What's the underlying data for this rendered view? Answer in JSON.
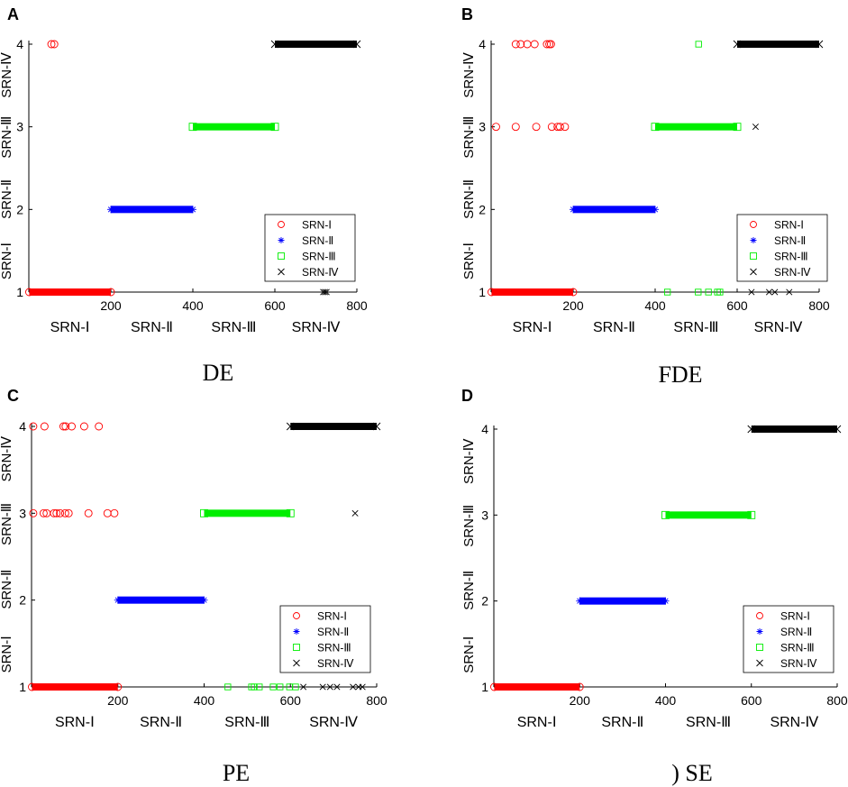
{
  "chart_data": [
    {
      "letter": "A",
      "caption": "DE",
      "type": "scatter",
      "title": "",
      "x_ticks": [
        "200",
        "400",
        "600",
        "800"
      ],
      "y_ticks": [
        "1",
        "2",
        "3",
        "4"
      ],
      "xlim": [
        0,
        800
      ],
      "ylim": [
        1,
        4
      ],
      "y_category_labels": [
        "SRN-Ⅰ",
        "SRN-Ⅱ",
        "SRN-Ⅲ",
        "SRN-Ⅳ"
      ],
      "x_category_labels": [
        "SRN-Ⅰ",
        "SRN-Ⅱ",
        "SRN-Ⅲ",
        "SRN-Ⅳ"
      ],
      "legend": [
        "SRN-Ⅰ",
        "SRN-Ⅱ",
        "SRN-Ⅲ",
        "SRN-Ⅳ"
      ],
      "legend_position": "bottom-right",
      "series": [
        {
          "name": "SRN-Ⅰ",
          "color": "#ff0000",
          "marker": "circle",
          "bands": [
            {
              "from": 1,
              "to": 200,
              "y": 1
            }
          ],
          "points": [
            [
              55,
              4
            ],
            [
              62,
              4
            ]
          ]
        },
        {
          "name": "SRN-Ⅱ",
          "color": "#0000ff",
          "marker": "asterisk",
          "bands": [
            {
              "from": 200,
              "to": 400,
              "y": 2
            }
          ],
          "points": []
        },
        {
          "name": "SRN-Ⅲ",
          "color": "#00ee00",
          "marker": "square",
          "bands": [
            {
              "from": 400,
              "to": 600,
              "y": 3
            }
          ],
          "points": []
        },
        {
          "name": "SRN-Ⅳ",
          "color": "#000000",
          "marker": "x",
          "bands": [
            {
              "from": 600,
              "to": 800,
              "y": 4
            }
          ],
          "points": [
            [
              718,
              1
            ],
            [
              722,
              1
            ],
            [
              726,
              1
            ]
          ]
        }
      ]
    },
    {
      "letter": "B",
      "caption": "FDE",
      "type": "scatter",
      "title": "",
      "x_ticks": [
        "200",
        "400",
        "600",
        "800"
      ],
      "y_ticks": [
        "1",
        "2",
        "3",
        "4"
      ],
      "xlim": [
        0,
        800
      ],
      "ylim": [
        1,
        4
      ],
      "y_category_labels": [
        "SRN-Ⅰ",
        "SRN-Ⅱ",
        "SRN-Ⅲ",
        "SRN-Ⅳ"
      ],
      "x_category_labels": [
        "SRN-Ⅰ",
        "SRN-Ⅱ",
        "SRN-Ⅲ",
        "SRN-Ⅳ"
      ],
      "legend": [
        "SRN-Ⅰ",
        "SRN-Ⅱ",
        "SRN-Ⅲ",
        "SRN-Ⅳ"
      ],
      "legend_position": "bottom-right",
      "series": [
        {
          "name": "SRN-Ⅰ",
          "color": "#ff0000",
          "marker": "circle",
          "bands": [
            {
              "from": 1,
              "to": 200,
              "y": 1
            }
          ],
          "points": [
            [
              12,
              3
            ],
            [
              60,
              3
            ],
            [
              110,
              3
            ],
            [
              148,
              3
            ],
            [
              162,
              3
            ],
            [
              168,
              3
            ],
            [
              180,
              3
            ],
            [
              60,
              4
            ],
            [
              72,
              4
            ],
            [
              88,
              4
            ],
            [
              106,
              4
            ],
            [
              136,
              4
            ],
            [
              142,
              4
            ],
            [
              146,
              4
            ]
          ]
        },
        {
          "name": "SRN-Ⅱ",
          "color": "#0000ff",
          "marker": "asterisk",
          "bands": [
            {
              "from": 200,
              "to": 400,
              "y": 2
            }
          ],
          "points": []
        },
        {
          "name": "SRN-Ⅲ",
          "color": "#00ee00",
          "marker": "square",
          "bands": [
            {
              "from": 400,
              "to": 600,
              "y": 3
            }
          ],
          "points": [
            [
              430,
              1
            ],
            [
              505,
              1
            ],
            [
              530,
              1
            ],
            [
              552,
              1
            ],
            [
              558,
              1
            ],
            [
              506,
              4
            ]
          ]
        },
        {
          "name": "SRN-Ⅳ",
          "color": "#000000",
          "marker": "x",
          "bands": [
            {
              "from": 600,
              "to": 800,
              "y": 4
            }
          ],
          "points": [
            [
              635,
              1
            ],
            [
              678,
              1
            ],
            [
              692,
              1
            ],
            [
              727,
              1
            ],
            [
              645,
              3
            ]
          ]
        }
      ]
    },
    {
      "letter": "C",
      "caption": "PE",
      "type": "scatter",
      "title": "",
      "x_ticks": [
        "200",
        "400",
        "600",
        "800"
      ],
      "y_ticks": [
        "1",
        "2",
        "3",
        "4"
      ],
      "xlim": [
        0,
        800
      ],
      "ylim": [
        1,
        4
      ],
      "y_category_labels": [
        "SRN-Ⅰ",
        "SRN-Ⅱ",
        "SRN-Ⅲ",
        "SRN-Ⅳ"
      ],
      "x_category_labels": [
        "SRN-Ⅰ",
        "SRN-Ⅱ",
        "SRN-Ⅲ",
        "SRN-Ⅳ"
      ],
      "legend": [
        "SRN-Ⅰ",
        "SRN-Ⅱ",
        "SRN-Ⅲ",
        "SRN-Ⅳ"
      ],
      "legend_position": "bottom-right",
      "series": [
        {
          "name": "SRN-Ⅰ",
          "color": "#ff0000",
          "marker": "circle",
          "bands": [
            {
              "from": 1,
              "to": 200,
              "y": 1
            }
          ],
          "points": [
            [
              4,
              3
            ],
            [
              28,
              3
            ],
            [
              35,
              3
            ],
            [
              52,
              3
            ],
            [
              58,
              3
            ],
            [
              66,
              3
            ],
            [
              78,
              3
            ],
            [
              86,
              3
            ],
            [
              132,
              3
            ],
            [
              176,
              3
            ],
            [
              192,
              3
            ],
            [
              4,
              4
            ],
            [
              30,
              4
            ],
            [
              74,
              4
            ],
            [
              79,
              4
            ],
            [
              93,
              4
            ],
            [
              122,
              4
            ],
            [
              156,
              4
            ]
          ]
        },
        {
          "name": "SRN-Ⅱ",
          "color": "#0000ff",
          "marker": "asterisk",
          "bands": [
            {
              "from": 200,
              "to": 400,
              "y": 2
            }
          ],
          "points": []
        },
        {
          "name": "SRN-Ⅲ",
          "color": "#00ee00",
          "marker": "square",
          "bands": [
            {
              "from": 400,
              "to": 600,
              "y": 3
            }
          ],
          "points": [
            [
              455,
              1
            ],
            [
              510,
              1
            ],
            [
              516,
              1
            ],
            [
              528,
              1
            ],
            [
              560,
              1
            ],
            [
              576,
              1
            ],
            [
              598,
              1
            ],
            [
              612,
              1
            ]
          ]
        },
        {
          "name": "SRN-Ⅳ",
          "color": "#000000",
          "marker": "x",
          "bands": [
            {
              "from": 600,
              "to": 800,
              "y": 4
            }
          ],
          "points": [
            [
              630,
              1
            ],
            [
              675,
              1
            ],
            [
              692,
              1
            ],
            [
              708,
              1
            ],
            [
              745,
              1
            ],
            [
              758,
              1
            ],
            [
              767,
              1
            ],
            [
              750,
              3
            ]
          ]
        }
      ]
    },
    {
      "letter": "D",
      "caption": ") SE",
      "type": "scatter",
      "title": "",
      "x_ticks": [
        "200",
        "400",
        "600",
        "800"
      ],
      "y_ticks": [
        "1",
        "2",
        "3",
        "4"
      ],
      "xlim": [
        0,
        800
      ],
      "ylim": [
        1,
        4
      ],
      "y_category_labels": [
        "SRN-Ⅰ",
        "SRN-Ⅱ",
        "SRN-Ⅲ",
        "SRN-Ⅳ"
      ],
      "x_category_labels": [
        "SRN-Ⅰ",
        "SRN-Ⅱ",
        "SRN-Ⅲ",
        "SRN-Ⅳ"
      ],
      "legend": [
        "SRN-Ⅰ",
        "SRN-Ⅱ",
        "SRN-Ⅲ",
        "SRN-Ⅳ"
      ],
      "legend_position": "bottom-right",
      "series": [
        {
          "name": "SRN-Ⅰ",
          "color": "#ff0000",
          "marker": "circle",
          "bands": [
            {
              "from": 1,
              "to": 200,
              "y": 1
            }
          ],
          "points": []
        },
        {
          "name": "SRN-Ⅱ",
          "color": "#0000ff",
          "marker": "asterisk",
          "bands": [
            {
              "from": 200,
              "to": 400,
              "y": 2
            }
          ],
          "points": []
        },
        {
          "name": "SRN-Ⅲ",
          "color": "#00ee00",
          "marker": "square",
          "bands": [
            {
              "from": 400,
              "to": 600,
              "y": 3
            }
          ],
          "points": []
        },
        {
          "name": "SRN-Ⅳ",
          "color": "#000000",
          "marker": "x",
          "bands": [
            {
              "from": 600,
              "to": 800,
              "y": 4
            }
          ],
          "points": []
        }
      ]
    }
  ]
}
